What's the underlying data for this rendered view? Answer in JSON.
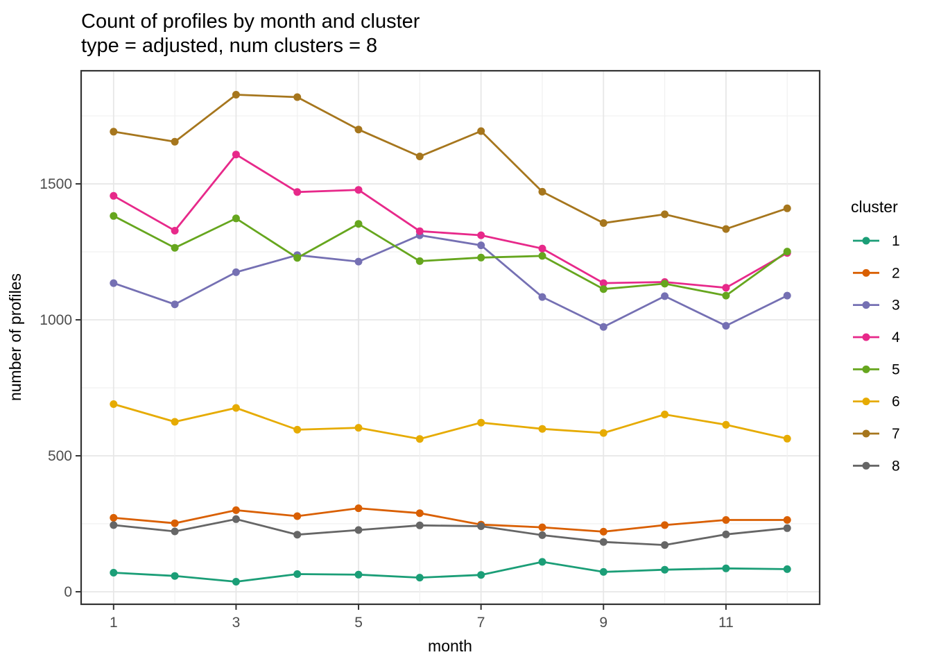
{
  "chart_data": {
    "type": "line",
    "title": "Count of profiles by month and cluster",
    "subtitle": "type = adjusted, num clusters = 8",
    "xlabel": "month",
    "ylabel": "number of profiles",
    "x": [
      1,
      2,
      3,
      4,
      5,
      6,
      7,
      8,
      9,
      10,
      11,
      12
    ],
    "series": [
      {
        "name": "1",
        "color": "#1B9E77",
        "values": [
          70,
          58,
          37,
          65,
          63,
          52,
          62,
          110,
          73,
          81,
          86,
          83
        ]
      },
      {
        "name": "2",
        "color": "#D95F02",
        "values": [
          272,
          252,
          300,
          278,
          307,
          289,
          247,
          237,
          221,
          245,
          264,
          264
        ]
      },
      {
        "name": "3",
        "color": "#7570B3",
        "values": [
          1135,
          1057,
          1175,
          1238,
          1214,
          1311,
          1274,
          1084,
          974,
          1087,
          978,
          1089
        ]
      },
      {
        "name": "4",
        "color": "#E7298A",
        "values": [
          1456,
          1328,
          1608,
          1470,
          1478,
          1326,
          1311,
          1262,
          1135,
          1139,
          1118,
          1246
        ]
      },
      {
        "name": "5",
        "color": "#66A61E",
        "values": [
          1382,
          1265,
          1373,
          1228,
          1353,
          1216,
          1229,
          1235,
          1113,
          1133,
          1089,
          1251
        ]
      },
      {
        "name": "6",
        "color": "#E6AB02",
        "values": [
          690,
          625,
          676,
          596,
          603,
          562,
          622,
          599,
          584,
          652,
          614,
          563
        ]
      },
      {
        "name": "7",
        "color": "#A6761D",
        "values": [
          1692,
          1655,
          1828,
          1819,
          1700,
          1601,
          1694,
          1471,
          1356,
          1388,
          1334,
          1410
        ]
      },
      {
        "name": "8",
        "color": "#666666",
        "values": [
          245,
          222,
          267,
          210,
          227,
          244,
          241,
          208,
          183,
          172,
          211,
          234
        ]
      }
    ],
    "x_ticks": [
      1,
      3,
      5,
      7,
      9,
      11
    ],
    "x_tick_labels": [
      "1",
      "3",
      "5",
      "7",
      "9",
      "11"
    ],
    "y_ticks": [
      0,
      500,
      1000,
      1500
    ],
    "y_tick_labels": [
      "0",
      "500",
      "1000",
      "1500"
    ],
    "y_minor": [
      250,
      750,
      1250,
      1750
    ],
    "xlim": [
      0.47,
      12.53
    ],
    "ylim": [
      -46,
      1916
    ],
    "grid": true,
    "legend": {
      "title": "cluster",
      "position": "right"
    },
    "colors": {
      "panel_border": "#333333",
      "tick": "#333333",
      "tick_label": "#4D4D4D",
      "grid_major": "#E7E7E7",
      "grid_minor": "#F0F0F0",
      "panel_bg": "#FFFFFF"
    }
  }
}
